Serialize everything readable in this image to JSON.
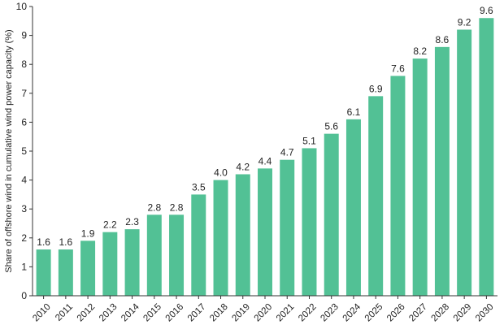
{
  "chart_data": {
    "type": "bar",
    "categories": [
      "2010",
      "2011",
      "2012",
      "2013",
      "2014",
      "2015",
      "2016",
      "2017",
      "2018",
      "2019",
      "2020",
      "2021",
      "2022",
      "2023",
      "2024",
      "2025",
      "2026",
      "2027",
      "2028",
      "2029",
      "2030"
    ],
    "values": [
      1.6,
      1.6,
      1.9,
      2.2,
      2.3,
      2.8,
      2.8,
      3.5,
      4.0,
      4.2,
      4.4,
      4.7,
      5.1,
      5.6,
      6.1,
      6.9,
      7.6,
      8.2,
      8.6,
      9.2,
      9.6
    ],
    "data_labels": [
      "1.6",
      "1.6",
      "1.9",
      "2.2",
      "2.3",
      "2.8",
      "2.8",
      "3.5",
      "4.0",
      "4.2",
      "4.4",
      "4.7",
      "5.1",
      "5.6",
      "6.1",
      "6.9",
      "7.6",
      "8.2",
      "8.6",
      "9.2",
      "9.6"
    ],
    "title": "",
    "xlabel": "",
    "ylabel": "Share of offshore wind in cumulative wind power capacity (%)",
    "ylim": [
      0,
      10
    ],
    "yticks": [
      "0",
      "1",
      "2",
      "3",
      "4",
      "5",
      "6",
      "7",
      "8",
      "9",
      "10"
    ],
    "grid": false,
    "legend": "none",
    "bar_color": "#52c195",
    "axis_color": "#333333"
  }
}
